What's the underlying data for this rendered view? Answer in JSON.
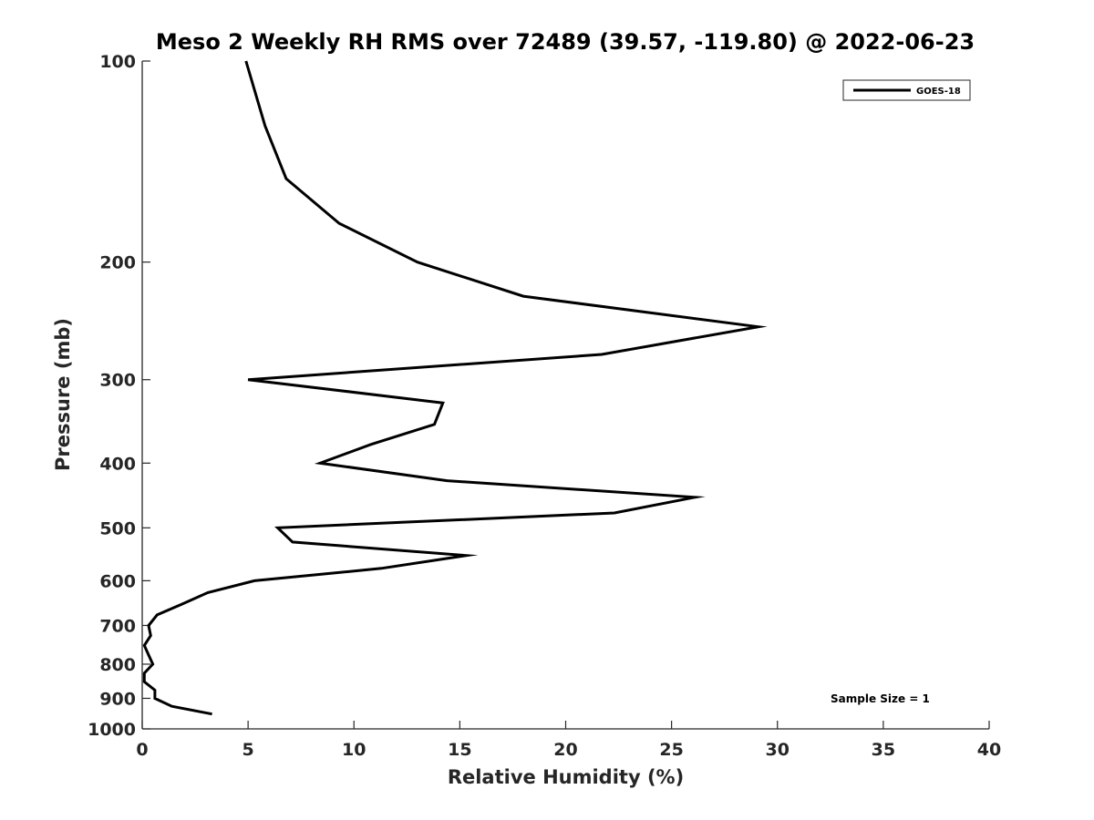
{
  "chart_data": {
    "type": "line",
    "title": "Meso 2 Weekly RH RMS over 72489 (39.57, -119.80) @ 2022-06-23",
    "xlabel": "Relative Humidity (%)",
    "ylabel": "Pressure (mb)",
    "xlim": [
      0,
      40
    ],
    "ylim": [
      100,
      1000
    ],
    "yscale": "log",
    "y_reversed": true,
    "x_ticks": [
      0,
      5,
      10,
      15,
      20,
      25,
      30,
      35,
      40
    ],
    "y_ticks": [
      100,
      200,
      300,
      400,
      500,
      600,
      700,
      800,
      900,
      1000
    ],
    "grid": false,
    "legend_position": "top-right",
    "colors": {
      "series": "#000000",
      "axis": "#262626"
    },
    "series": [
      {
        "name": "GOES-18",
        "points": [
          [
            4.9,
            100
          ],
          [
            5.8,
            125
          ],
          [
            6.8,
            150
          ],
          [
            9.3,
            175
          ],
          [
            13.0,
            200
          ],
          [
            18.0,
            225
          ],
          [
            29.1,
            250
          ],
          [
            21.7,
            275
          ],
          [
            5.0,
            300
          ],
          [
            14.2,
            325
          ],
          [
            13.8,
            350
          ],
          [
            10.8,
            375
          ],
          [
            8.4,
            400
          ],
          [
            14.4,
            425
          ],
          [
            26.1,
            450
          ],
          [
            22.3,
            475
          ],
          [
            6.4,
            500
          ],
          [
            7.1,
            525
          ],
          [
            15.3,
            550
          ],
          [
            11.3,
            575
          ],
          [
            5.3,
            600
          ],
          [
            3.1,
            625
          ],
          [
            1.9,
            650
          ],
          [
            0.7,
            675
          ],
          [
            0.3,
            700
          ],
          [
            0.4,
            725
          ],
          [
            0.1,
            750
          ],
          [
            0.3,
            775
          ],
          [
            0.5,
            800
          ],
          [
            0.1,
            825
          ],
          [
            0.1,
            850
          ],
          [
            0.6,
            875
          ],
          [
            0.6,
            900
          ],
          [
            1.4,
            925
          ],
          [
            3.3,
            950
          ]
        ]
      }
    ],
    "annotations": [
      "Sample Size = 1"
    ]
  }
}
